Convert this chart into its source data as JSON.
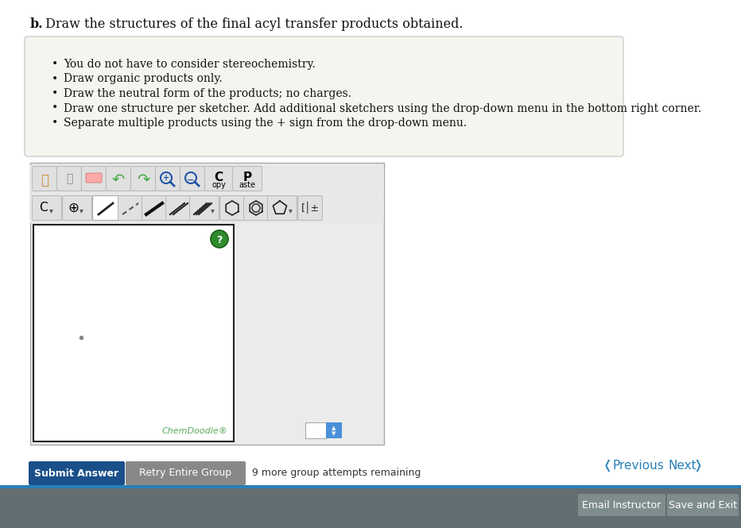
{
  "title_bold": "b.",
  "title_text": " Draw the structures of the final acyl transfer products obtained.",
  "bullet_points": [
    "You do not have to consider stereochemistry.",
    "Draw organic products only.",
    "Draw the neutral form of the products; no charges.",
    "Draw one structure per sketcher. Add additional sketchers using the drop-down menu in the bottom right corner.",
    "Separate multiple products using the + sign from the drop-down menu."
  ],
  "instruction_box_bg": "#f5f5f0",
  "instruction_box_border": "#cccccc",
  "page_bg": "#ffffff",
  "chemdoodle_text": "ChemDoodle",
  "chemdoodle_sup": "®",
  "chemdoodle_color": "#5aaa5a",
  "sketcher_bg": "#ffffff",
  "sketcher_border": "#222222",
  "toolbar_bg": "#e8e8e8",
  "outer_toolbar_bg": "#ebebeb",
  "question_mark_color": "#2e8b2e",
  "question_mark_border": "#1a5c1a",
  "dot_color": "#888888",
  "submit_btn_bg": "#1a4f8a",
  "submit_btn_text": "Submit Answer",
  "submit_btn_text_color": "#ffffff",
  "retry_btn_bg": "#888888",
  "retry_btn_text": "Retry Entire Group",
  "retry_btn_text_color": "#ffffff",
  "attempts_text": "9 more group attempts remaining",
  "prev_text": "Previous",
  "next_text": "Next",
  "nav_color": "#2980b9",
  "bottom_strip_color": "#2980b9",
  "footer_bg": "#636e72",
  "email_btn_bg": "#7f8c8d",
  "email_btn_text": "Email Instructor",
  "save_btn_bg": "#7f8c8d",
  "save_btn_text": "Save and Exit",
  "footer_text_color": "#ffffff",
  "icon_btn_bg": "#e0e0e0",
  "icon_btn_border": "#bbbbbb",
  "copy_label": "C\nopy",
  "paste_label": "P\naste"
}
